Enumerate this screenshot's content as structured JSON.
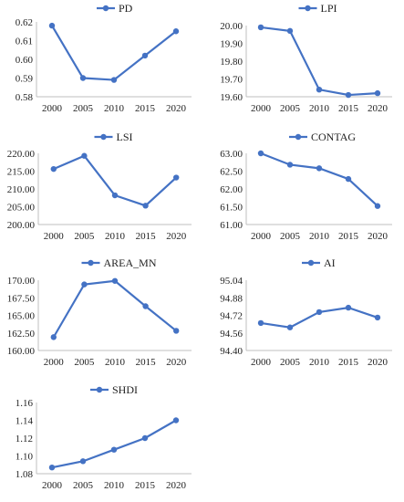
{
  "series_color": "#4472C4",
  "chart_data": [
    {
      "type": "line",
      "x": [
        "2000",
        "2005",
        "2010",
        "2015",
        "2020"
      ],
      "series": [
        {
          "name": "PD",
          "values": [
            0.618,
            0.59,
            0.589,
            0.602,
            0.615
          ]
        }
      ],
      "ylim": [
        0.58,
        0.62
      ],
      "yticks": [
        "0.58",
        "0.59",
        "0.60",
        "0.61",
        "0.62"
      ],
      "legend": "top-center",
      "grid": false
    },
    {
      "type": "line",
      "x": [
        "2000",
        "2005",
        "2010",
        "2015",
        "2020"
      ],
      "series": [
        {
          "name": "LPI",
          "values": [
            19.99,
            19.97,
            19.64,
            19.61,
            19.62
          ]
        }
      ],
      "ylim": [
        19.6,
        20.0
      ],
      "yticks": [
        "19.60",
        "19.70",
        "19.80",
        "19.90",
        "20.00"
      ],
      "legend": "top-center",
      "grid": false
    },
    {
      "type": "line",
      "x": [
        "2000",
        "2005",
        "2010",
        "2015",
        "2020"
      ],
      "series": [
        {
          "name": "LSI",
          "values": [
            215.6,
            219.3,
            208.2,
            205.3,
            213.2
          ]
        }
      ],
      "ylim": [
        200,
        220
      ],
      "yticks": [
        "200.00",
        "205.00",
        "210.00",
        "215.00",
        "220.00"
      ],
      "legend": "top-center",
      "grid": false
    },
    {
      "type": "line",
      "x": [
        "2000",
        "2005",
        "2010",
        "2015",
        "2020"
      ],
      "series": [
        {
          "name": "CONTAG",
          "values": [
            63.0,
            62.68,
            62.58,
            62.28,
            61.52
          ]
        }
      ],
      "ylim": [
        61.0,
        63.0
      ],
      "yticks": [
        "61.00",
        "61.50",
        "62.00",
        "62.50",
        "63.00"
      ],
      "legend": "top-center",
      "grid": false
    },
    {
      "type": "line",
      "x": [
        "2000",
        "2005",
        "2010",
        "2015",
        "2020"
      ],
      "series": [
        {
          "name": "AREA_MN",
          "values": [
            161.9,
            169.4,
            169.9,
            166.3,
            162.8
          ]
        }
      ],
      "ylim": [
        160,
        170
      ],
      "yticks": [
        "160.00",
        "162.50",
        "165.00",
        "167.50",
        "170.00"
      ],
      "legend": "top-center",
      "grid": false
    },
    {
      "type": "line",
      "x": [
        "2000",
        "2005",
        "2010",
        "2015",
        "2020"
      ],
      "series": [
        {
          "name": "AI",
          "values": [
            94.65,
            94.61,
            94.75,
            94.79,
            94.7
          ]
        }
      ],
      "ylim": [
        94.4,
        95.04
      ],
      "yticks": [
        "94.40",
        "94.56",
        "94.72",
        "94.88",
        "95.04"
      ],
      "legend": "top-center",
      "grid": false
    },
    {
      "type": "line",
      "x": [
        "2000",
        "2005",
        "2010",
        "2015",
        "2020"
      ],
      "series": [
        {
          "name": "SHDI",
          "values": [
            1.087,
            1.094,
            1.107,
            1.12,
            1.14
          ]
        }
      ],
      "ylim": [
        1.08,
        1.16
      ],
      "yticks": [
        "1.08",
        "1.10",
        "1.12",
        "1.14",
        "1.16"
      ],
      "legend": "top-center",
      "grid": false
    }
  ]
}
